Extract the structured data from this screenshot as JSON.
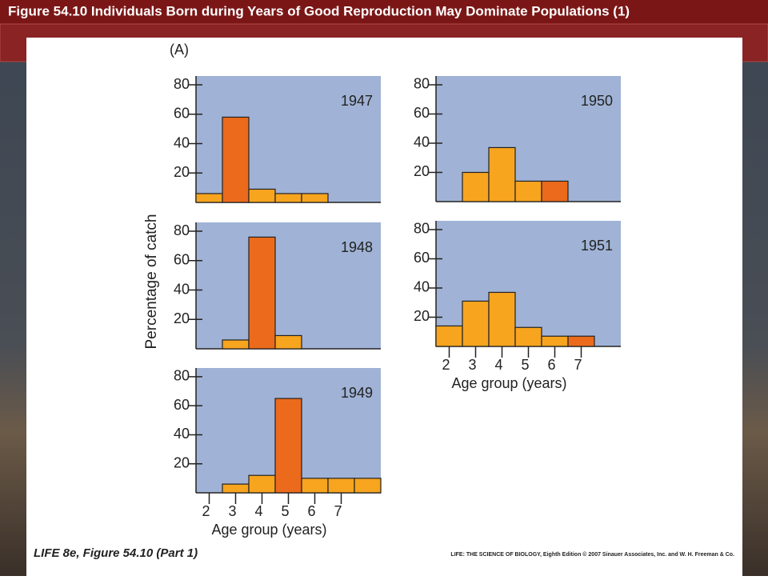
{
  "title": "Figure 54.10 Individuals Born during Years of Good Reproduction May Dominate Populations (1)",
  "panel_label": "(A)",
  "ylabel": "Percentage of catch",
  "footer": {
    "left": "LIFE 8e, Figure 54.10 (Part 1)",
    "right": "LIFE: THE SCIENCE OF BIOLOGY, Eighth Edition © 2007 Sinauer Associates, Inc. and W. H. Freeman & Co."
  },
  "chart_data": [
    {
      "type": "bar",
      "annotation": "1947",
      "values": [
        6,
        58,
        9,
        6,
        6,
        0,
        0
      ],
      "colors": [
        "#f7a41e",
        "#ec6a1b",
        "#f7a41e",
        "#f7a41e",
        "#f7a41e",
        "#f7a41e",
        "#f7a41e"
      ],
      "ylim": [
        0,
        86
      ],
      "yticks": [
        20,
        40,
        60,
        80
      ]
    },
    {
      "type": "bar",
      "annotation": "1948",
      "values": [
        0,
        6,
        76,
        9,
        0,
        0,
        0
      ],
      "colors": [
        "#f7a41e",
        "#f7a41e",
        "#ec6a1b",
        "#f7a41e",
        "#f7a41e",
        "#f7a41e",
        "#f7a41e"
      ],
      "ylim": [
        0,
        86
      ],
      "yticks": [
        20,
        40,
        60,
        80
      ]
    },
    {
      "type": "bar",
      "annotation": "1949",
      "categories": [
        "2",
        "3",
        "4",
        "5",
        "6",
        "7",
        null
      ],
      "values": [
        0,
        6,
        12,
        65,
        10,
        10,
        10
      ],
      "colors": [
        "#f7a41e",
        "#f7a41e",
        "#f7a41e",
        "#ec6a1b",
        "#f7a41e",
        "#f7a41e",
        "#f7a41e"
      ],
      "xlabel": "Age group (years)",
      "ylim": [
        0,
        86
      ],
      "yticks": [
        20,
        40,
        60,
        80
      ]
    },
    {
      "type": "bar",
      "annotation": "1950",
      "values": [
        0,
        20,
        37,
        14,
        14,
        0,
        0
      ],
      "colors": [
        "#f7a41e",
        "#f7a41e",
        "#f7a41e",
        "#f7a41e",
        "#ec6a1b",
        "#f7a41e",
        "#f7a41e"
      ],
      "ylim": [
        0,
        86
      ],
      "yticks": [
        20,
        40,
        60,
        80
      ]
    },
    {
      "type": "bar",
      "annotation": "1951",
      "categories": [
        "2",
        "3",
        "4",
        "5",
        "6",
        "7",
        null
      ],
      "values": [
        14,
        31,
        37,
        13,
        7,
        7,
        0
      ],
      "colors": [
        "#f7a41e",
        "#f7a41e",
        "#f7a41e",
        "#f7a41e",
        "#f7a41e",
        "#ec6a1b",
        "#f7a41e"
      ],
      "xlabel": "Age group (years)",
      "ylim": [
        0,
        86
      ],
      "yticks": [
        20,
        40,
        60,
        80
      ]
    }
  ]
}
